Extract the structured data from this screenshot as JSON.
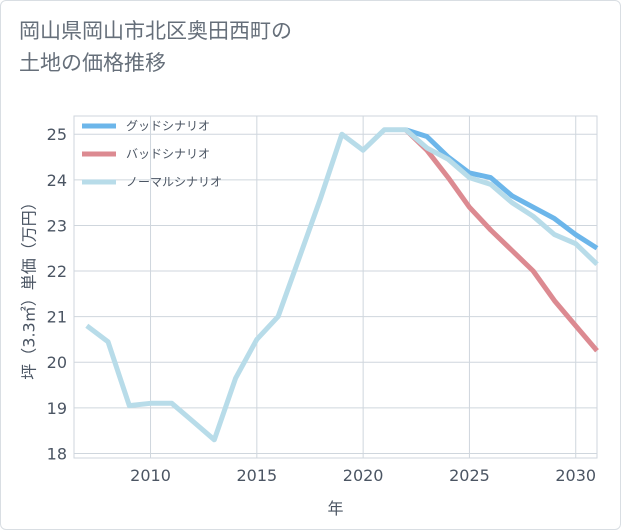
{
  "title": "岡山県岡山市北区奥田西町の\n土地の価格推移",
  "chart_data": {
    "type": "line",
    "xlabel": "年",
    "ylabel": "坪（3.3㎡）単価（万円）",
    "xlim": [
      2006.4,
      2031.0
    ],
    "ylim": [
      17.9,
      25.4
    ],
    "x_ticks": [
      2010,
      2015,
      2020,
      2025,
      2030
    ],
    "y_ticks": [
      18,
      19,
      20,
      21,
      22,
      23,
      24,
      25
    ],
    "grid": true,
    "legend_position": "top-left",
    "series": [
      {
        "name": "グッドシナリオ",
        "color": "#6cb6ea",
        "x": [
          2022,
          2023,
          2024,
          2025,
          2026,
          2027,
          2028,
          2029,
          2030,
          2031
        ],
        "y": [
          25.1,
          24.95,
          24.5,
          24.15,
          24.05,
          23.65,
          23.4,
          23.15,
          22.8,
          22.5
        ]
      },
      {
        "name": "バッドシナリオ",
        "color": "#dc8a91",
        "x": [
          2022,
          2023,
          2024,
          2025,
          2026,
          2027,
          2028,
          2029,
          2030,
          2031
        ],
        "y": [
          25.1,
          24.65,
          24.05,
          23.4,
          22.9,
          22.45,
          22.0,
          21.35,
          20.8,
          20.25
        ]
      },
      {
        "name": "ノーマルシナリオ",
        "color": "#b8dce9",
        "x": [
          2007,
          2008,
          2009,
          2010,
          2011,
          2012,
          2013,
          2014,
          2015,
          2016,
          2017,
          2018,
          2019,
          2020,
          2021,
          2022,
          2023,
          2024,
          2025,
          2026,
          2027,
          2028,
          2029,
          2030,
          2031
        ],
        "y": [
          20.8,
          20.45,
          19.05,
          19.1,
          19.1,
          18.7,
          18.3,
          19.65,
          20.5,
          21.0,
          22.3,
          23.6,
          25.0,
          24.65,
          25.1,
          25.1,
          24.7,
          24.45,
          24.05,
          23.9,
          23.5,
          23.2,
          22.8,
          22.6,
          22.15
        ]
      }
    ]
  }
}
